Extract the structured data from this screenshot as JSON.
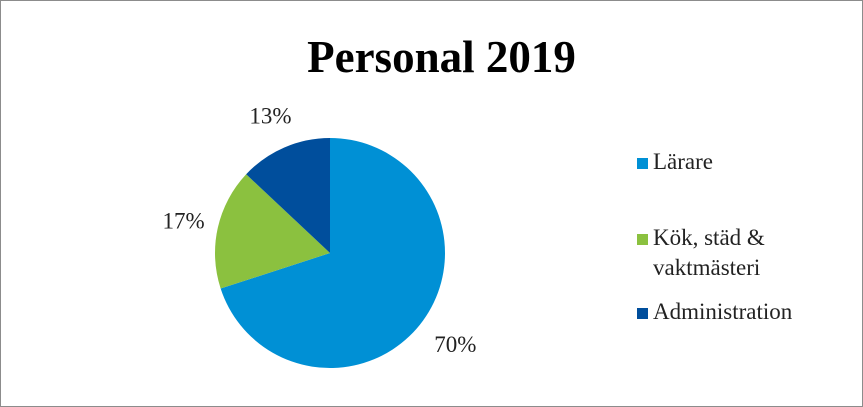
{
  "chart_data": {
    "type": "pie",
    "title": "Personal 2019",
    "categories": [
      "Lärare",
      "Kök, städ & vaktmästeri",
      "Administration"
    ],
    "values": [
      70,
      17,
      13
    ],
    "labels": [
      "70%",
      "17%",
      "13%"
    ],
    "colors": [
      "#0090d5",
      "#8bc13f",
      "#004e9c"
    ],
    "legend_position": "right",
    "legend_lines": [
      [
        "Lärare"
      ],
      [
        "Kök, städ &",
        "vaktmästeri"
      ],
      [
        "Administration"
      ]
    ]
  }
}
